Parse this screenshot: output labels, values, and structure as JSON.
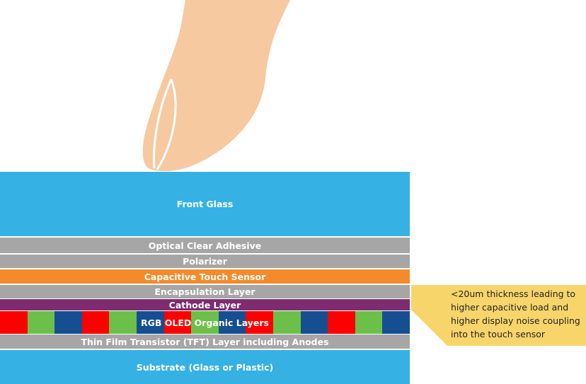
{
  "colors": {
    "blue": "#35b1e4",
    "gray": "#a6a6a6",
    "orange": "#f38b2c",
    "purple": "#7d2c70",
    "red": "#ff0000",
    "green": "#6cc04a",
    "darkblue": "#164f91",
    "skin": "#f6c9a0",
    "callout": "#f8d56b"
  },
  "layers": [
    {
      "label": "Front Glass",
      "color": "#35b1e4"
    },
    {
      "label": "Optical Clear Adhesive",
      "color": "#a6a6a6"
    },
    {
      "label": "Polarizer",
      "color": "#a6a6a6"
    },
    {
      "label": "Capacitive Touch Sensor",
      "color": "#f38b2c"
    },
    {
      "label": "Encapsulation Layer",
      "color": "#a6a6a6"
    },
    {
      "label": "Cathode Layer",
      "color": "#7d2c70"
    },
    {
      "label": "RGB OLED Organic Layers",
      "color": "rgb"
    },
    {
      "label": "Thin Film  Transistor (TFT) Layer  including Anodes",
      "color": "#a6a6a6"
    },
    {
      "label": "Substrate (Glass or Plastic)",
      "color": "#35b1e4"
    }
  ],
  "callout": {
    "text": "<20um thickness leading to higher capacitive load and higher display noise coupling into the touch sensor"
  }
}
